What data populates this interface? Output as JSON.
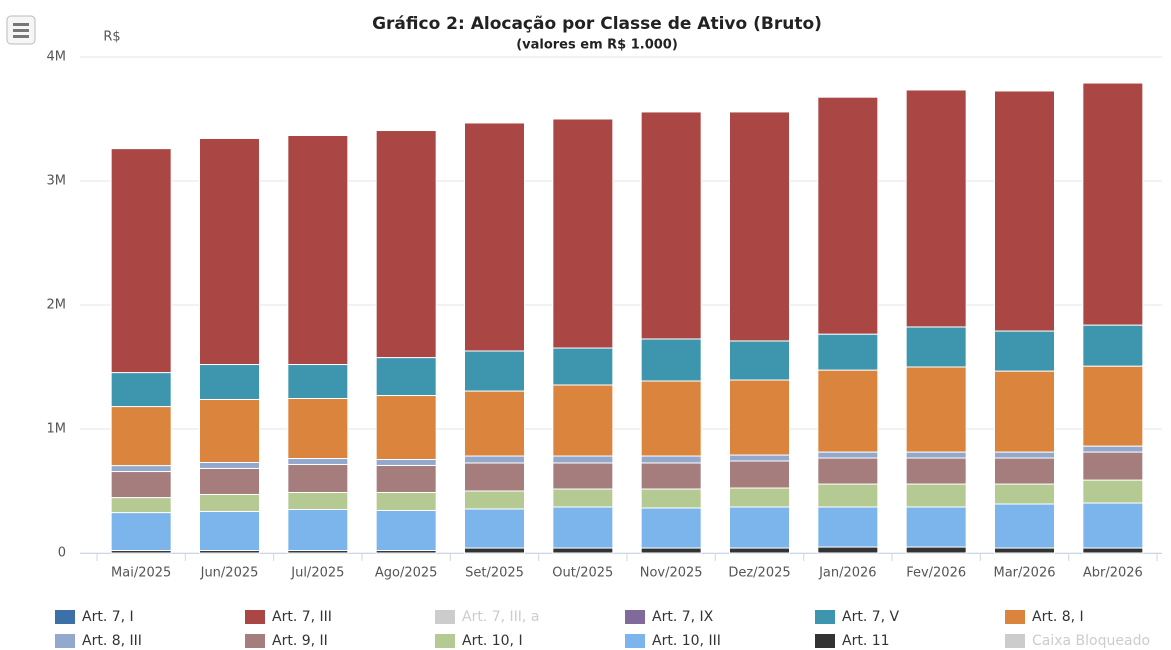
{
  "chart_data": {
    "type": "stacked_bar",
    "title": "Gráfico 2: Alocação por Classe de Ativo (Bruto)",
    "subtitle": "(valores em R$ 1.000)",
    "y_label": "R$",
    "categories": [
      "Mai/2025",
      "Jun/2025",
      "Jul/2025",
      "Ago/2025",
      "Set/2025",
      "Out/2025",
      "Nov/2025",
      "Dez/2025",
      "Jan/2026",
      "Fev/2026",
      "Mar/2026",
      "Abr/2026"
    ],
    "ylim": [
      0,
      4000000
    ],
    "yticks": [
      0,
      {
        "value": 1000000,
        "label": "1M"
      },
      {
        "value": 2000000,
        "label": "2M"
      },
      {
        "value": 3000000,
        "label": "3M"
      },
      {
        "value": 4000000,
        "label": "4M"
      }
    ],
    "grid": true,
    "series": [
      {
        "name": "Art. 7, I",
        "color": "#3d6fa8",
        "visible": true,
        "values": [
          0,
          0,
          0,
          0,
          0,
          0,
          0,
          0,
          0,
          0,
          0,
          0
        ]
      },
      {
        "name": "Art. 7, III",
        "color": "#aa4643",
        "visible": true,
        "values": [
          1806000,
          1823000,
          1847000,
          1831000,
          1839000,
          1847000,
          1831000,
          1847000,
          1911000,
          1911000,
          1936000,
          1952000
        ]
      },
      {
        "name": "Art. 7, III, a",
        "color": "#cccccc",
        "visible": false,
        "values": [
          null,
          null,
          null,
          null,
          null,
          null,
          null,
          null,
          null,
          null,
          null,
          null
        ]
      },
      {
        "name": "Art. 7, IX",
        "color": "#80699b",
        "visible": true,
        "values": [
          0,
          0,
          0,
          0,
          0,
          0,
          0,
          0,
          0,
          0,
          0,
          0
        ]
      },
      {
        "name": "Art. 7, V",
        "color": "#3d96ae",
        "visible": true,
        "values": [
          274000,
          282000,
          274000,
          306000,
          323000,
          298000,
          339000,
          315000,
          290000,
          323000,
          323000,
          331000
        ]
      },
      {
        "name": "Art. 8, I",
        "color": "#db843d",
        "visible": true,
        "values": [
          476000,
          508000,
          484000,
          516000,
          524000,
          573000,
          605000,
          605000,
          661000,
          686000,
          653000,
          645000
        ]
      },
      {
        "name": "Art. 8, III",
        "color": "#92a8cd",
        "visible": true,
        "values": [
          48000,
          48000,
          48000,
          48000,
          56000,
          56000,
          56000,
          48000,
          48000,
          48000,
          48000,
          48000
        ]
      },
      {
        "name": "Art. 9, II",
        "color": "#a47d7c",
        "visible": true,
        "values": [
          210000,
          210000,
          226000,
          218000,
          226000,
          210000,
          210000,
          218000,
          210000,
          210000,
          210000,
          226000
        ]
      },
      {
        "name": "Art. 10, I",
        "color": "#b5ca92",
        "visible": true,
        "values": [
          121000,
          137000,
          137000,
          145000,
          145000,
          145000,
          153000,
          153000,
          185000,
          185000,
          161000,
          185000
        ]
      },
      {
        "name": "Art. 10, III",
        "color": "#7cb5ec",
        "visible": true,
        "values": [
          306000,
          315000,
          331000,
          323000,
          315000,
          331000,
          323000,
          331000,
          323000,
          323000,
          355000,
          363000
        ]
      },
      {
        "name": "Art. 11",
        "color": "#333333",
        "visible": true,
        "values": [
          20000,
          20000,
          20000,
          20000,
          40000,
          40000,
          40000,
          40000,
          48000,
          48000,
          40000,
          40000
        ]
      },
      {
        "name": "Caixa Bloqueado",
        "color": "#cccccc",
        "visible": false,
        "values": [
          null,
          null,
          null,
          null,
          null,
          null,
          null,
          null,
          null,
          null,
          null,
          null
        ]
      }
    ]
  }
}
